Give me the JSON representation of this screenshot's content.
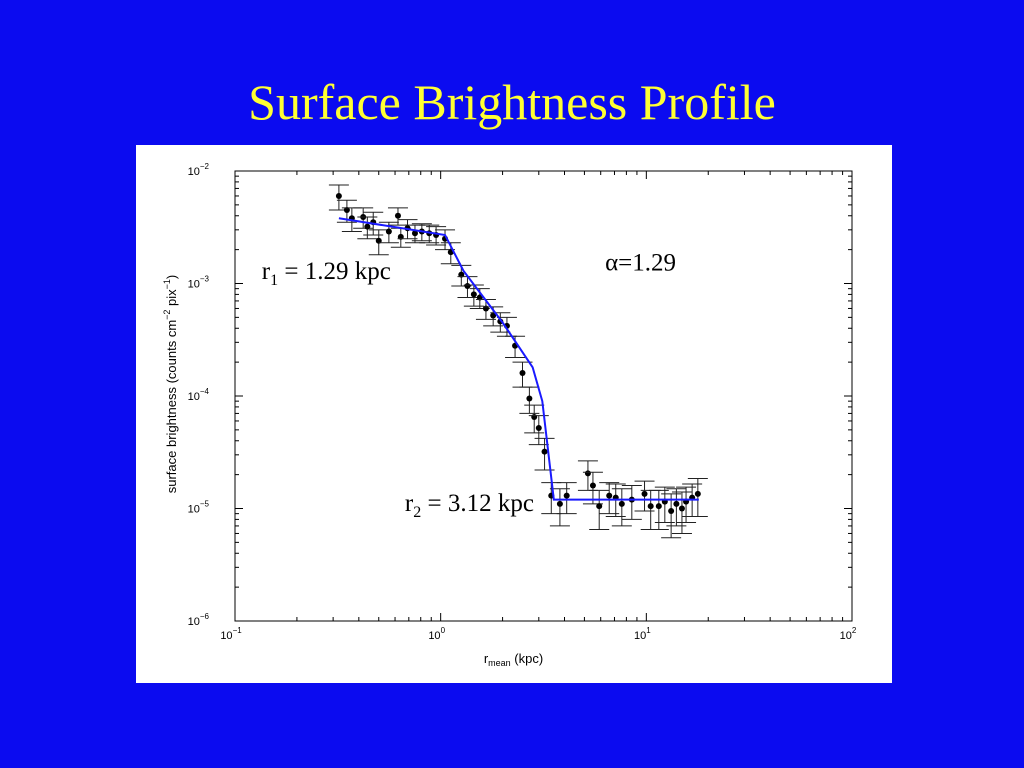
{
  "slide": {
    "title": "Surface Brightness Profile"
  },
  "chart_data": {
    "type": "scatter",
    "xscale": "log",
    "yscale": "log",
    "xlim": [
      0.1,
      100
    ],
    "ylim": [
      1e-06,
      0.01
    ],
    "grid": false,
    "xlabel": {
      "base": "r",
      "subscript": "mean",
      "suffix": " (kpc)"
    },
    "ylabel": {
      "pre": "surface brightness (counts cm",
      "sup1": "−2",
      "mid": " pix",
      "sup2": "−1",
      "post": ")"
    },
    "xticks": [
      {
        "value": 0.1,
        "label": "10",
        "exp": "−1"
      },
      {
        "value": 1,
        "label": "10",
        "exp": "0"
      },
      {
        "value": 10,
        "label": "10",
        "exp": "1"
      },
      {
        "value": 100,
        "label": "10",
        "exp": "2"
      }
    ],
    "yticks": [
      {
        "value": 1e-06,
        "label": "10",
        "exp": "−6"
      },
      {
        "value": 1e-05,
        "label": "10",
        "exp": "−5"
      },
      {
        "value": 0.0001,
        "label": "10",
        "exp": "−4"
      },
      {
        "value": 0.001,
        "label": "10",
        "exp": "−3"
      },
      {
        "value": 0.01,
        "label": "10",
        "exp": "−2"
      }
    ],
    "annotations": [
      {
        "base": "r",
        "sub": "1",
        "text": " = 1.29 kpc",
        "x": 0.135,
        "y": 0.0011
      },
      {
        "base": "α",
        "sub": "",
        "text": "=1.29",
        "x": 6.3,
        "y": 0.0013
      },
      {
        "base": "r",
        "sub": "2",
        "text": " = 3.12 kpc",
        "x": 0.67,
        "y": 9.5e-06
      }
    ],
    "series": [
      {
        "kind": "points",
        "color": "#000000",
        "x": [
          0.32,
          0.35,
          0.37,
          0.42,
          0.44,
          0.47,
          0.5,
          0.56,
          0.62,
          0.64,
          0.69,
          0.75,
          0.81,
          0.88,
          0.95,
          1.05,
          1.12,
          1.26,
          1.35,
          1.45,
          1.55,
          1.66,
          1.8,
          1.95,
          2.1,
          2.3,
          2.5,
          2.7,
          2.85,
          3.0,
          3.2,
          3.45,
          3.8,
          4.1,
          5.2,
          5.5,
          5.9,
          6.6,
          7.1,
          7.6,
          8.5,
          9.8,
          10.5,
          11.5,
          12.3,
          13.2,
          14.0,
          14.9,
          15.6,
          16.7,
          17.8
        ],
        "y": [
          0.006,
          0.0045,
          0.0038,
          0.0039,
          0.0032,
          0.0035,
          0.0024,
          0.0029,
          0.004,
          0.0026,
          0.0031,
          0.0028,
          0.0029,
          0.0028,
          0.0027,
          0.0025,
          0.0019,
          0.0012,
          0.00095,
          0.0008,
          0.00075,
          0.0006,
          0.00052,
          0.00046,
          0.00042,
          0.00028,
          0.00016,
          9.5e-05,
          6.5e-05,
          5.2e-05,
          3.2e-05,
          1.3e-05,
          1.1e-05,
          1.3e-05,
          2.05e-05,
          1.6e-05,
          1.05e-05,
          1.3e-05,
          1.25e-05,
          1.1e-05,
          1.2e-05,
          1.35e-05,
          1.05e-05,
          1.05e-05,
          1.15e-05,
          9.5e-06,
          1.1e-05,
          1e-05,
          1.15e-05,
          1.25e-05,
          1.35e-05
        ],
        "yerr_lo": [
          0.0015,
          0.001,
          0.0009,
          0.0008,
          0.0007,
          0.0008,
          0.0006,
          0.0006,
          0.0007,
          0.0005,
          0.0006,
          0.0005,
          0.0005,
          0.0005,
          0.0005,
          0.0005,
          0.0004,
          0.00025,
          0.0002,
          0.00017,
          0.00015,
          0.00012,
          0.0001,
          9e-05,
          8e-05,
          6e-05,
          4e-05,
          2.5e-05,
          1.8e-05,
          1.5e-05,
          1e-05,
          4e-06,
          4e-06,
          4e-06,
          6e-06,
          5e-06,
          4e-06,
          4e-06,
          4e-06,
          4e-06,
          4e-06,
          4e-06,
          4e-06,
          4e-06,
          4e-06,
          4e-06,
          4e-06,
          4e-06,
          4e-06,
          4e-06,
          5e-06
        ],
        "yerr_hi": [
          0.0015,
          0.001,
          0.0009,
          0.0008,
          0.0007,
          0.0008,
          0.0006,
          0.0006,
          0.0007,
          0.0005,
          0.0006,
          0.0005,
          0.0005,
          0.0005,
          0.0005,
          0.0005,
          0.0004,
          0.00025,
          0.0002,
          0.00017,
          0.00015,
          0.00012,
          0.0001,
          9e-05,
          8e-05,
          6e-05,
          4e-05,
          2.5e-05,
          1.8e-05,
          1.5e-05,
          1e-05,
          4e-06,
          4e-06,
          4e-06,
          6e-06,
          5e-06,
          4e-06,
          4e-06,
          4e-06,
          4e-06,
          4e-06,
          4e-06,
          4e-06,
          4e-06,
          4e-06,
          4e-06,
          4e-06,
          4e-06,
          4e-06,
          4e-06,
          5e-06
        ]
      },
      {
        "kind": "model-line",
        "color": "#1a1aff",
        "x": [
          0.32,
          1.05,
          1.29,
          2.0,
          2.8,
          3.12,
          3.55,
          18.0
        ],
        "y": [
          0.0038,
          0.0027,
          0.0013,
          0.00045,
          0.00018,
          9e-05,
          1.2e-05,
          1.2e-05
        ]
      }
    ],
    "colors": {
      "background": "#0b0bf0",
      "title": "#ffff33",
      "panel": "#ffffff",
      "model": "#1a1aff",
      "points": "#000000"
    }
  }
}
